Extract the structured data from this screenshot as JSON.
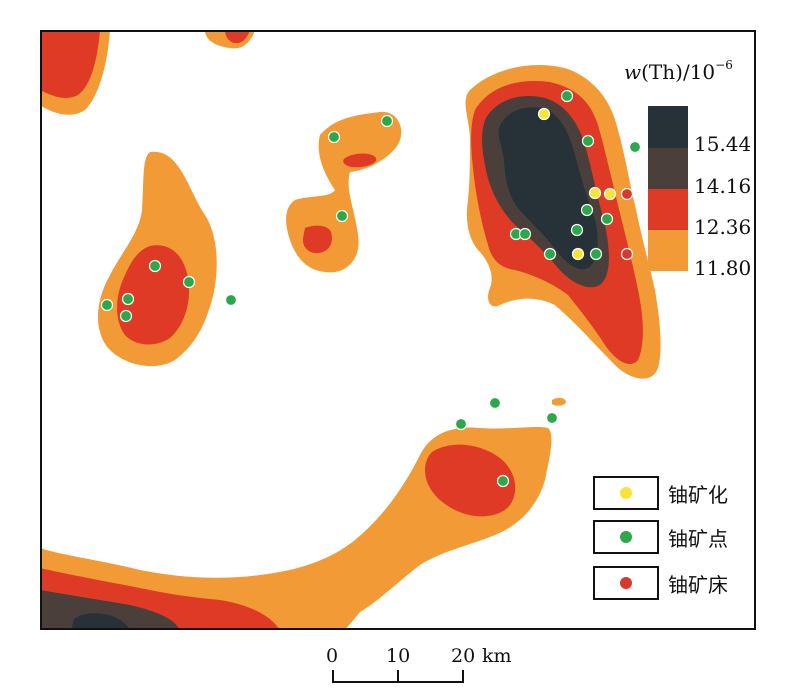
{
  "colorbar": {
    "title_symbol": "w",
    "title_rest": "(Th)/10",
    "title_exponent": "−6",
    "classes": [
      {
        "label": "15.44",
        "color": "#263138"
      },
      {
        "label": "14.16",
        "color": "#4a3f3a"
      },
      {
        "label": "12.36",
        "color": "#df3a25"
      },
      {
        "label": "11.80",
        "color": "#f29a36"
      }
    ]
  },
  "legend": [
    {
      "label": "铀矿化",
      "color": "#f7e43a"
    },
    {
      "label": "铀矿点",
      "color": "#2aa84a"
    },
    {
      "label": "铀矿床",
      "color": "#d63a2c"
    }
  ],
  "scale_bar": {
    "ticks": [
      "0",
      "10",
      "20"
    ],
    "unit": "km"
  },
  "map_colors": {
    "background": "#ffffff",
    "outer": "#f29a36",
    "mid": "#df3a25",
    "high": "#4a3f3a",
    "peak": "#263138"
  }
}
